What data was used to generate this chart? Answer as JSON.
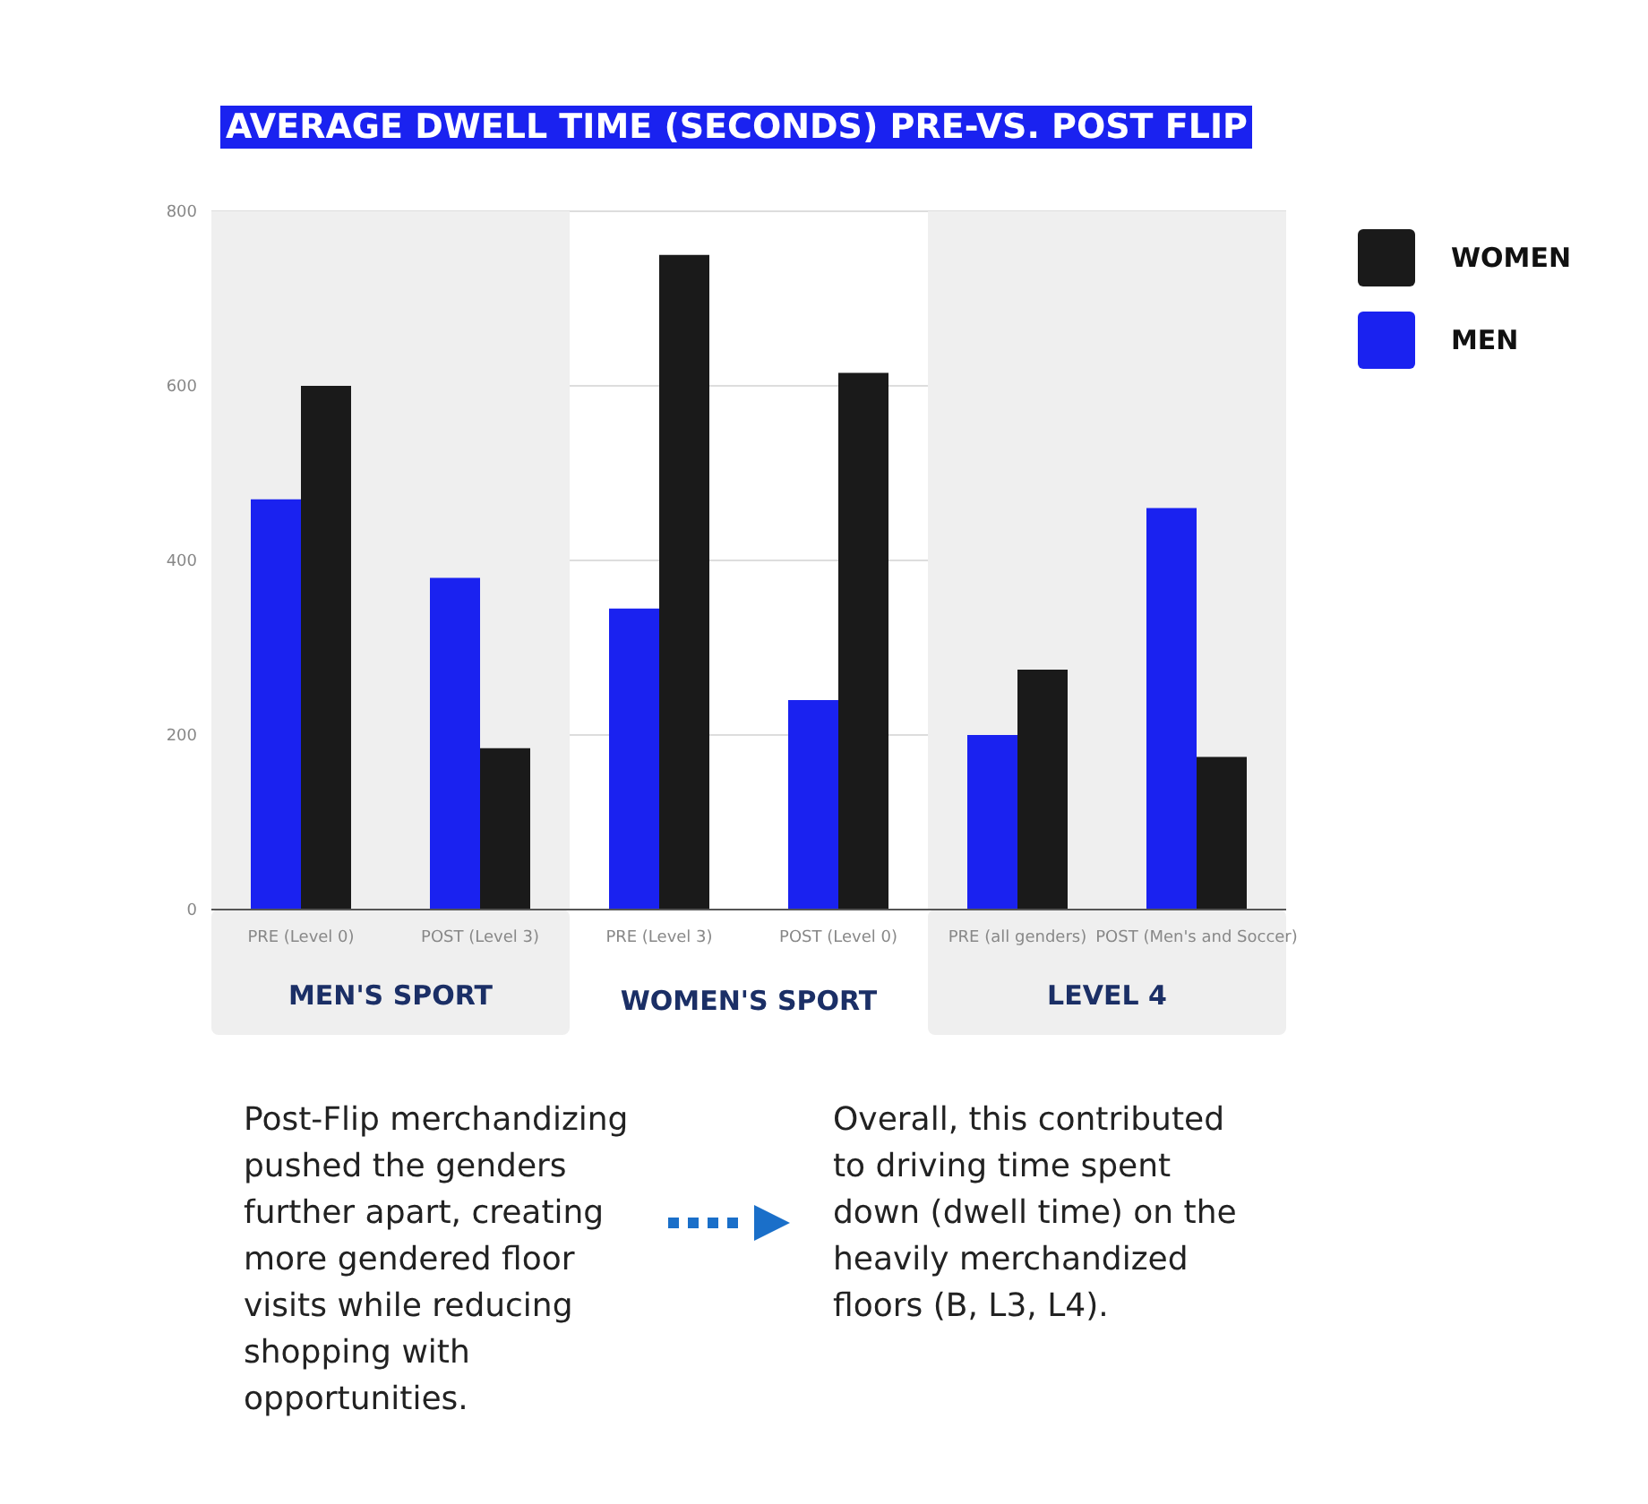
{
  "chart_data": {
    "type": "bar",
    "title": "AVERAGE DWELL TIME (SECONDS) PRE-VS. POST FLIP",
    "categories": [
      "PRE (Level 0)",
      "POST (Level 3)",
      "PRE (Level 3)",
      "POST (Level 0)",
      "PRE (all genders)",
      "POST (Men's and Soccer)"
    ],
    "series": [
      {
        "name": "MEN",
        "color": "#1a22f0",
        "values": [
          470,
          380,
          345,
          240,
          200,
          460
        ]
      },
      {
        "name": "WOMEN",
        "color": "#1a1a1a",
        "values": [
          600,
          185,
          750,
          615,
          275,
          175
        ]
      }
    ],
    "ylim": [
      0,
      800
    ],
    "yticks": [
      0,
      200,
      400,
      600,
      800
    ],
    "grid": "y",
    "legend": "top right",
    "bands": [
      {
        "axis": "x",
        "from": "PRE (Level 0)",
        "to": "POST (Level 3)",
        "label": "MEN'S SPORT",
        "color": "#efefef"
      },
      {
        "axis": "x",
        "from": "PRE (all genders)",
        "to": "POST (Men's and Soccer)",
        "label": "LEVEL 4",
        "color": "#efefef"
      }
    ],
    "annotations": [
      "WOMEN'S SPORT",
      "Post-Flip merchandizing pushed the genders further apart, creating more gendered floor visits while reducing shopping with opportunities.",
      "Overall, this contributed to driving time spent down (dwell time) on the heavily merchandized floors (B, L3, L4)."
    ]
  }
}
